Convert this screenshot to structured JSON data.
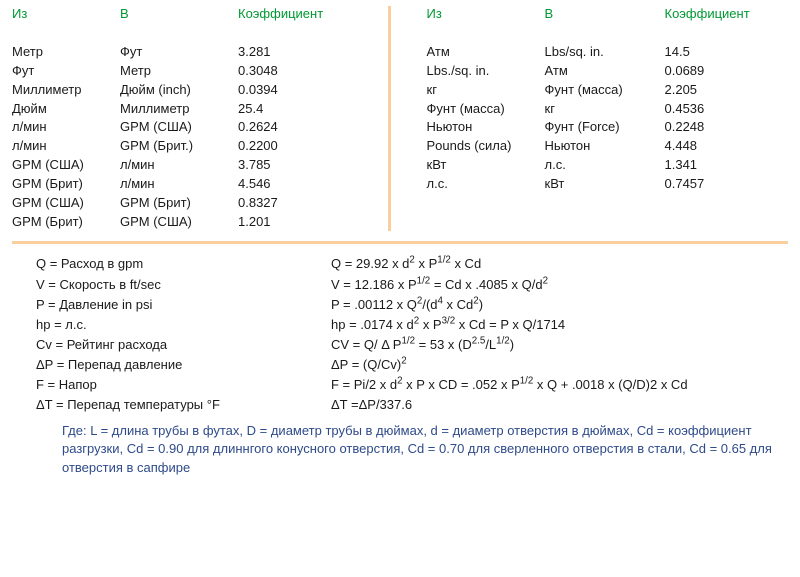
{
  "header_color": "#009933",
  "left_headers": {
    "c0": "Из",
    "c1": "В",
    "c2": "Коэффициент"
  },
  "right_headers": {
    "c0": "Из",
    "c1": "В",
    "c2": "Коэффициент"
  },
  "left_rows": [
    {
      "from": "Метр",
      "to": "Фут",
      "k": "3.281"
    },
    {
      "from": "Фут",
      "to": "Метр",
      "k": "0.3048"
    },
    {
      "from": "Миллиметр",
      "to": "Дюйм (inch)",
      "k": "0.0394"
    },
    {
      "from": "Дюйм",
      "to": "Миллиметр",
      "k": "25.4"
    },
    {
      "from": "л/мин",
      "to": "GPM (США)",
      "k": "0.2624"
    },
    {
      "from": "л/мин",
      "to": "GPM (Брит.)",
      "k": "0.2200"
    },
    {
      "from": "GPM (США)",
      "to": "л/мин",
      "k": "3.785"
    },
    {
      "from": "GPM (Брит)",
      "to": "л/мин",
      "k": "4.546"
    },
    {
      "from": "GPM (США)",
      "to": "GPM (Брит)",
      "k": "0.8327"
    },
    {
      "from": "GPM (Брит)",
      "to": "GPM (США)",
      "k": "1.201"
    }
  ],
  "right_rows": [
    {
      "from": "Атм",
      "to": "Lbs/sq. in.",
      "k": "14.5"
    },
    {
      "from": "Lbs./sq. in.",
      "to": "Атм",
      "k": "0.0689"
    },
    {
      "from": "кг",
      "to": "Фунт (масса)",
      "k": "2.205"
    },
    {
      "from": "Фунт (масса)",
      "to": "кг",
      "k": "0.4536"
    },
    {
      "from": "Ньютон",
      "to": "Фунт (Force)",
      "k": "0.2248"
    },
    {
      "from": "Pounds (сила)",
      "to": "Ньютон",
      "k": "4.448"
    },
    {
      "from": "кВт",
      "to": "л.с.",
      "k": "1.341"
    },
    {
      "from": "л.с.",
      "to": "кВт",
      "k": "0.7457"
    }
  ],
  "formulas": [
    {
      "label": "Q = Расход в gpm",
      "expr_html": "Q = 29.92 x d<sup>2</sup> x P<sup>1/2</sup> x Cd"
    },
    {
      "label": "V = Скорость в ft/sec",
      "expr_html": "V = 12.186 x P<sup>1/2</sup> = Cd x .4085 x Q/d<sup>2</sup>"
    },
    {
      "label": "P = Давление in psi",
      "expr_html": "P = .00112 x Q<sup>2</sup>/(d<sup>4</sup> x Cd<sup>2</sup>)"
    },
    {
      "label": "hp = л.с.",
      "expr_html": "hp = .0174 x d<sup>2</sup> x P<sup>3/2</sup> x Cd = P x Q/1714"
    },
    {
      "label": "Cv = Рейтинг расхода",
      "expr_html": "CV = Q/ Δ P<sup>1/2</sup> = 53 x (D<sup>2.5</sup>/L<sup>1/2</sup>)"
    },
    {
      "label": "ΔP = Перепад давление",
      "expr_html": "ΔP = (Q/Cv)<sup>2</sup>"
    },
    {
      "label": "F = Напор",
      "expr_html": "F = Pi/2 x d<sup>2</sup> x P x CD = .052 x P<sup>1/2</sup> x Q + .0018 x (Q/D)2 x Cd"
    },
    {
      "label": "ΔT = Перепад температуры °F",
      "expr_html": "ΔT =ΔP/337.6"
    }
  ],
  "note": "Где: L = длина трубы в футах, D = диаметр трубы в дюймах, d = диаметр отверстия в дюймах, Cd = коэффициент разгрузки, Cd = 0.90 для длиннгого конусного отверстия, Cd = 0.70 для сверленного отверстия в стали, Cd = 0.65 для отверстия в сапфире"
}
